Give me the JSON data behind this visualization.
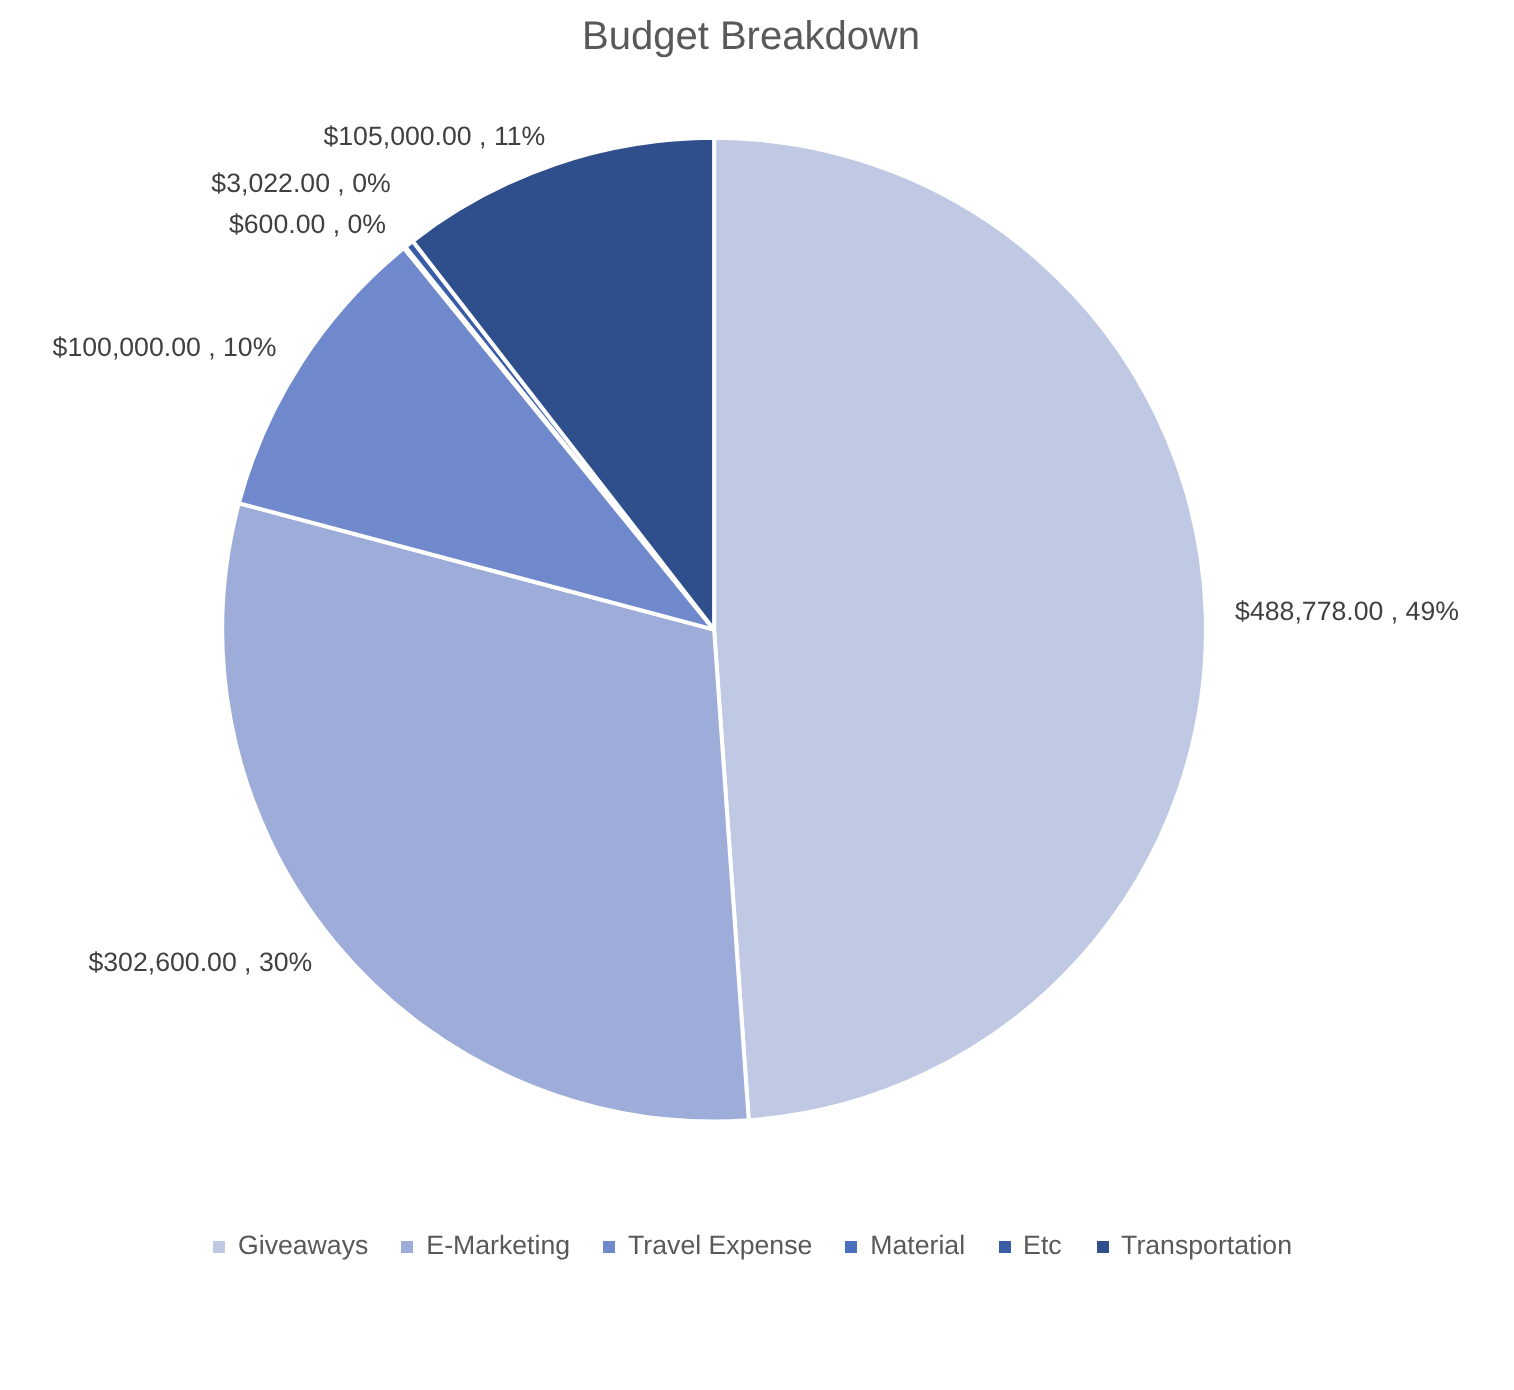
{
  "chart_data": {
    "type": "pie",
    "title": "Budget Breakdown",
    "categories": [
      "Giveaways",
      "E-Marketing",
      "Travel Expense",
      "Material",
      "Etc",
      "Transportation"
    ],
    "values": [
      488778,
      302600,
      100000,
      600,
      3022,
      105000
    ],
    "colors": [
      "#c0c9e4",
      "#9dacd8",
      "#6f89cc",
      "#4a6fbf",
      "#3b5da8",
      "#2e4f8c"
    ],
    "value_labels": [
      "$488,778.00 , 49%",
      "$302,600.00 , 30%",
      "$100,000.00 , 10%",
      "$600.00 , 0%",
      "$3,022.00 , 0%",
      "$105,000.00 , 11%"
    ],
    "legend": "bottom"
  }
}
